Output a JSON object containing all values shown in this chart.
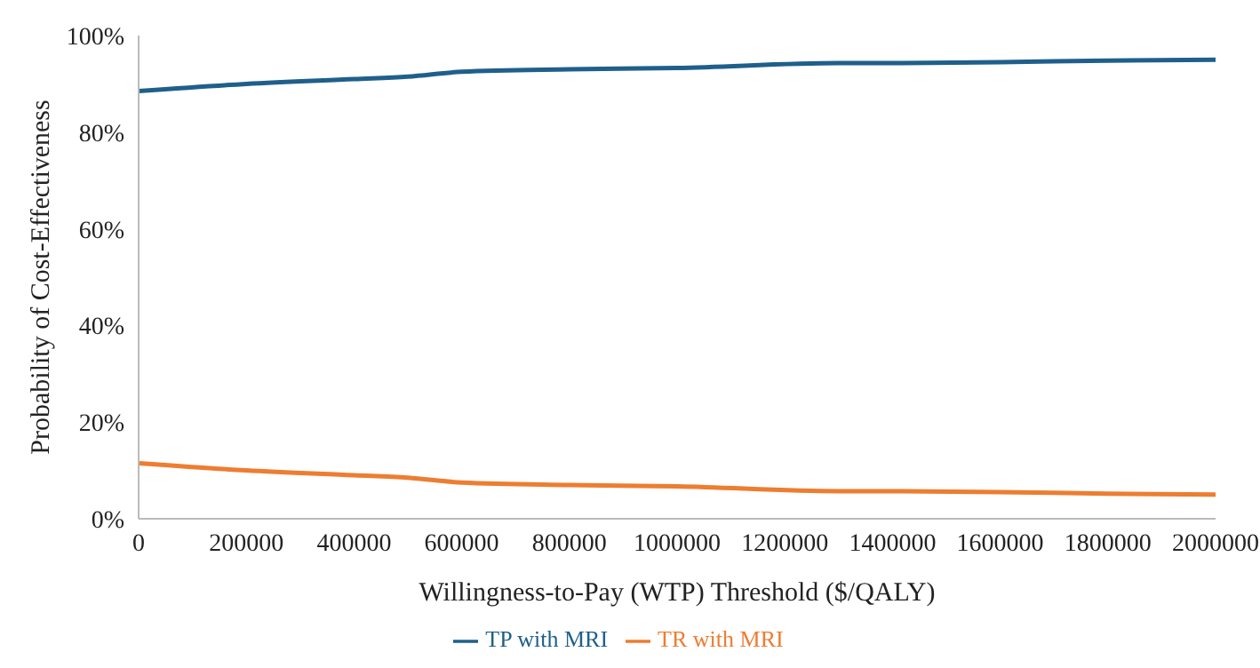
{
  "chart_data": {
    "type": "line",
    "xlabel": "Willingness-to-Pay (WTP) Threshold ($/QALY)",
    "ylabel": "Probability of Cost-Effectiveness",
    "x": [
      0,
      200000,
      400000,
      500000,
      600000,
      800000,
      1000000,
      1300000,
      1400000,
      1600000,
      1800000,
      2000000
    ],
    "series": [
      {
        "name": "TP with MRI",
        "color": "#1f5f8b",
        "values": [
          88.5,
          90,
          91,
          91.5,
          92.5,
          93,
          93.3,
          94.3,
          94.3,
          94.5,
          94.8,
          95
        ]
      },
      {
        "name": "TR with MRI",
        "color": "#ed7d31",
        "values": [
          11.5,
          10,
          9,
          8.5,
          7.5,
          7,
          6.7,
          5.7,
          5.7,
          5.5,
          5.2,
          5
        ]
      }
    ],
    "xlim": [
      0,
      2000000
    ],
    "xticks": [
      0,
      200000,
      400000,
      600000,
      800000,
      1000000,
      1200000,
      1400000,
      1600000,
      1800000,
      2000000
    ],
    "ylim": [
      0,
      100
    ],
    "yticks": [
      {
        "value": 0,
        "label": "0%"
      },
      {
        "value": 20,
        "label": "20%"
      },
      {
        "value": 40,
        "label": "40%"
      },
      {
        "value": 60,
        "label": "60%"
      },
      {
        "value": 80,
        "label": "80%"
      },
      {
        "value": 100,
        "label": "100%"
      }
    ],
    "grid": false,
    "legend": "bottom",
    "marker": "none",
    "line_style": "solid"
  }
}
